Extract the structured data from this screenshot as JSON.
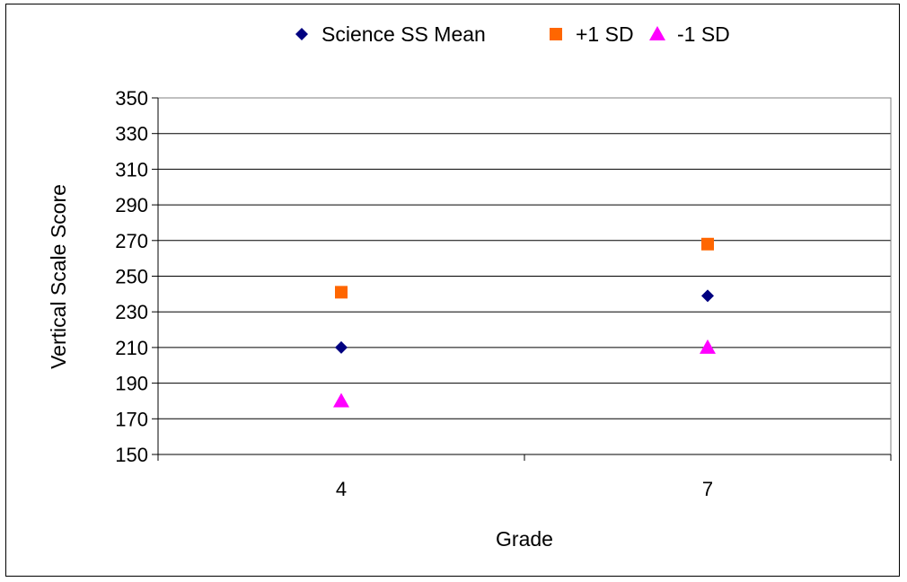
{
  "chart_data": {
    "type": "scatter",
    "title": "",
    "xlabel": "Grade",
    "ylabel": "Vertical Scale Score",
    "categories": [
      "4",
      "7"
    ],
    "ylim": [
      150,
      350
    ],
    "yticks": [
      150,
      170,
      190,
      210,
      230,
      250,
      270,
      290,
      310,
      330,
      350
    ],
    "grid": "horizontal",
    "legend_position": "top",
    "series": [
      {
        "name": "Science SS Mean",
        "marker": "diamond",
        "color": "#000080",
        "values": [
          210,
          239
        ]
      },
      {
        "name": "+1 SD",
        "marker": "square",
        "color": "#FF6600",
        "values": [
          241,
          268
        ]
      },
      {
        "name": "-1 SD",
        "marker": "triangle",
        "color": "#FF00FF",
        "values": [
          180,
          210
        ]
      }
    ]
  }
}
